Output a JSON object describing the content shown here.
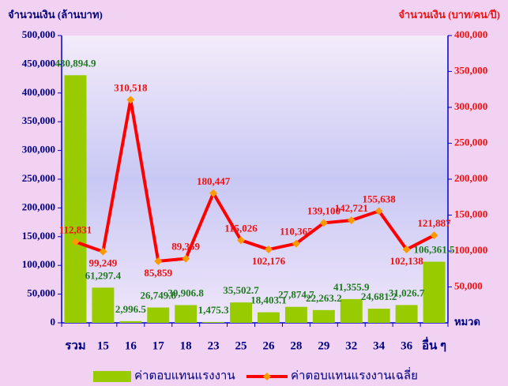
{
  "chart_data": {
    "type": "bar_line",
    "y_title": "จำนวนเงิน (ล้านบาท)",
    "y2_title": "จำนวนเงิน (บาท/คน/ปี)",
    "x_title": "หมวด",
    "categories": [
      "รวม",
      "15",
      "16",
      "17",
      "18",
      "23",
      "25",
      "26",
      "28",
      "29",
      "32",
      "34",
      "36",
      "อื่น ๆ"
    ],
    "series": [
      {
        "name": "ค่าตอบแทนแรงงาน",
        "type": "bar",
        "color": "#99cc00",
        "label_color": "#1f7a1f",
        "values": [
          430894.9,
          61297.4,
          2996.5,
          26749.8,
          30906.8,
          1475.3,
          35502.7,
          18403.1,
          27874.7,
          22263.2,
          41355.9,
          24681.2,
          31026.7,
          106361.5
        ],
        "value_labels": [
          "430,894.9",
          "61,297.4",
          "2,996.5",
          "26,749.8",
          "30,906.8",
          "1,475.3",
          "35,502.7",
          "18,403.1",
          "27,874.7",
          "22,263.2",
          "41,355.9",
          "24,681.2",
          "31,026.7",
          "106,361.5"
        ]
      },
      {
        "name": "ค่าตอบแทนแรงงานเฉลี่ย",
        "type": "line",
        "axis": "y2",
        "color": "#ff0000",
        "marker_color": "#ff9900",
        "label_color": "#ee1111",
        "values": [
          112831,
          99249,
          310518,
          85859,
          89369,
          180447,
          115026,
          102176,
          110365,
          139100,
          142721,
          155638,
          102138,
          121887
        ],
        "value_labels": [
          "112,831",
          "99,249",
          "310,518",
          "85,859",
          "89,369",
          "180,447",
          "115,026",
          "102,176",
          "110,365",
          "139,100",
          "142,721",
          "155,638",
          "102,138",
          "121,887"
        ]
      }
    ],
    "ylim": [
      0,
      500000
    ],
    "yticks": [
      0,
      {
        "value": 50000,
        "label": "50,000"
      },
      {
        "value": 100000,
        "label": "100,000"
      },
      {
        "value": 150000,
        "label": "150,000"
      },
      {
        "value": 200000,
        "label": "200,000"
      },
      {
        "value": 250000,
        "label": "250,000"
      },
      {
        "value": 300000,
        "label": "300,000"
      },
      {
        "value": 350000,
        "label": "350,000"
      },
      {
        "value": 400000,
        "label": "400,000"
      },
      {
        "value": 450000,
        "label": "450,000"
      },
      {
        "value": 500000,
        "label": "500,000"
      }
    ],
    "y2lim": [
      0,
      400000
    ],
    "y2ticks": [
      {
        "value": 50000,
        "label": "50,000"
      },
      {
        "value": 100000,
        "label": "100,000"
      },
      {
        "value": 150000,
        "label": "150,000"
      },
      {
        "value": 200000,
        "label": "200,000"
      },
      {
        "value": 250000,
        "label": "250,000"
      },
      {
        "value": 300000,
        "label": "300,000"
      },
      {
        "value": 350000,
        "label": "350,000"
      },
      {
        "value": 400000,
        "label": "400,000"
      }
    ]
  }
}
